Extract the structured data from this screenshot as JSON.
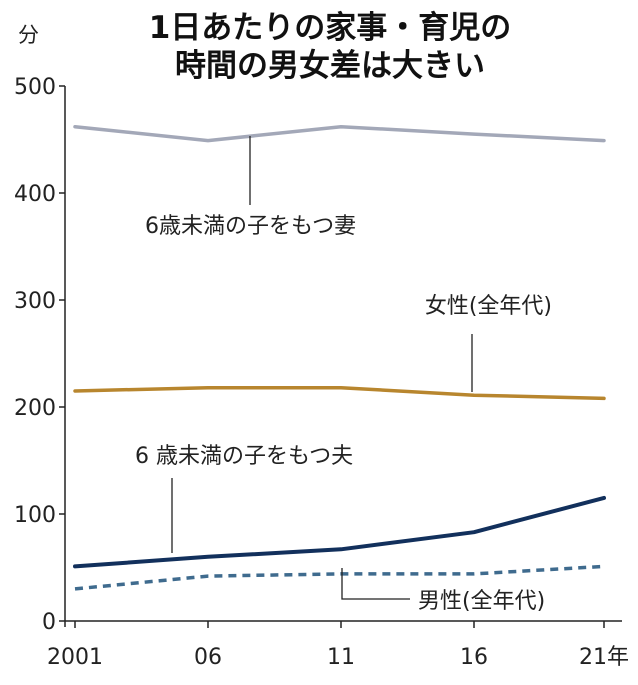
{
  "chart_data": {
    "type": "line",
    "title": "1日あたりの家事・育児の\n時間の男女差は大きい",
    "ylabel": "分",
    "ylim": [
      0,
      500
    ],
    "yticks": [
      0,
      100,
      200,
      300,
      400,
      500
    ],
    "categories": [
      "2001",
      "06",
      "11",
      "16",
      "21年"
    ],
    "grid": false,
    "series": [
      {
        "name": "6歳未満の子をもつ妻",
        "values": [
          462,
          449,
          462,
          455,
          449
        ],
        "color": "#a3a8b8",
        "dashed": false
      },
      {
        "name": "女性(全年代)",
        "values": [
          215,
          218,
          218,
          211,
          208
        ],
        "color": "#b8862e",
        "dashed": false
      },
      {
        "name": "6 歳未満の子をもつ夫",
        "values": [
          51,
          60,
          67,
          83,
          115
        ],
        "color": "#12305c",
        "dashed": false
      },
      {
        "name": "男性(全年代)",
        "values": [
          30,
          42,
          44,
          44,
          51
        ],
        "color": "#3f6b8e",
        "dashed": true
      }
    ]
  }
}
